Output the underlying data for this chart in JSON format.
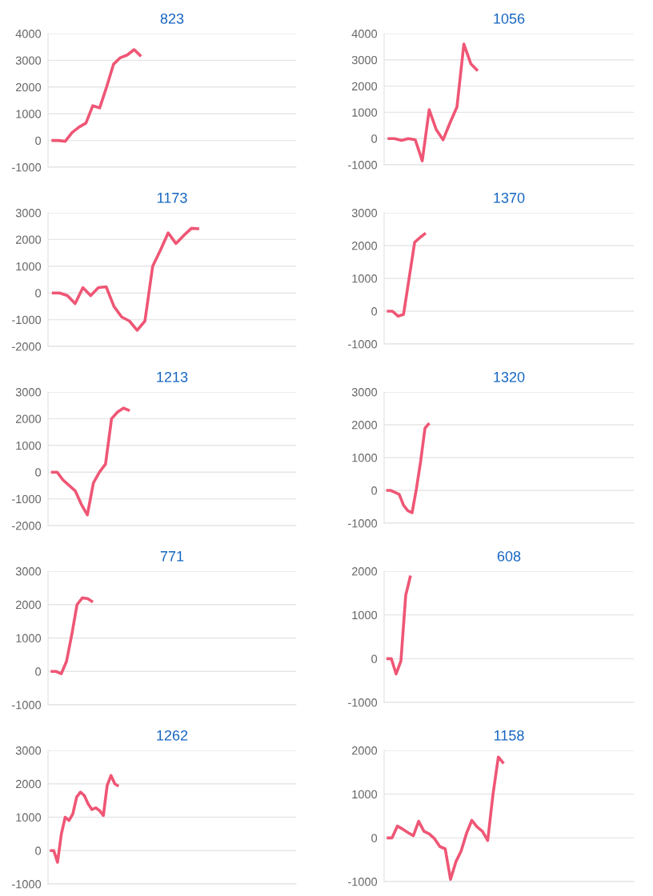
{
  "chart_data": [
    {
      "type": "line",
      "title": "823",
      "color": "#ef5675",
      "grid": "y",
      "ylim": [
        -1000,
        4000
      ],
      "yticks": [
        -1000,
        0,
        1000,
        2000,
        3000,
        4000
      ],
      "categories": [
        null,
        null,
        null,
        null,
        null,
        null,
        null,
        null,
        null,
        null,
        null,
        null,
        null,
        null,
        null,
        null,
        null,
        null,
        null,
        null,
        null,
        null,
        null,
        null,
        null,
        null,
        null,
        null,
        null,
        null,
        null,
        null,
        null,
        null,
        null,
        null
      ],
      "values": [
        0,
        0,
        -30,
        300,
        500,
        650,
        1300,
        1220,
        2000,
        2850,
        3100,
        3200,
        3400,
        3150,
        null,
        null,
        null,
        null,
        null,
        null,
        null,
        null,
        null,
        null,
        null,
        null,
        null,
        null,
        null,
        null,
        null,
        null,
        null,
        null,
        null,
        null
      ]
    },
    {
      "type": "line",
      "title": "1056",
      "color": "#ef5675",
      "grid": "y",
      "ylim": [
        -1000,
        4000
      ],
      "yticks": [
        -1000,
        0,
        1000,
        2000,
        3000,
        4000
      ],
      "categories": [
        null,
        null,
        null,
        null,
        null,
        null,
        null,
        null,
        null,
        null,
        null,
        null,
        null,
        null,
        null,
        null,
        null,
        null,
        null,
        null,
        null,
        null,
        null,
        null,
        null,
        null,
        null,
        null,
        null,
        null,
        null,
        null,
        null,
        null,
        null,
        null
      ],
      "values": [
        0,
        0,
        -70,
        0,
        -50,
        -850,
        1100,
        350,
        -50,
        600,
        1200,
        3600,
        2850,
        2580,
        null,
        null,
        null,
        null,
        null,
        null,
        null,
        null,
        null,
        null,
        null,
        null,
        null,
        null,
        null,
        null,
        null,
        null,
        null,
        null,
        null,
        null
      ]
    },
    {
      "type": "line",
      "title": "1173",
      "color": "#ef5675",
      "grid": "y",
      "ylim": [
        -2000,
        3000
      ],
      "yticks": [
        -2000,
        -1000,
        0,
        1000,
        2000,
        3000
      ],
      "categories": [
        null,
        null,
        null,
        null,
        null,
        null,
        null,
        null,
        null,
        null,
        null,
        null,
        null,
        null,
        null,
        null,
        null,
        null,
        null,
        null,
        null,
        null,
        null,
        null,
        null,
        null,
        null,
        null,
        null,
        null,
        null,
        null
      ],
      "values": [
        0,
        0,
        -100,
        -400,
        200,
        -100,
        200,
        230,
        -500,
        -900,
        -1050,
        -1400,
        -1050,
        1000,
        1600,
        2250,
        1850,
        2150,
        2420,
        2400,
        null,
        null,
        null,
        null,
        null,
        null,
        null,
        null,
        null,
        null,
        null,
        null
      ]
    },
    {
      "type": "line",
      "title": "1370",
      "color": "#ef5675",
      "grid": "y",
      "ylim": [
        -1000,
        3000
      ],
      "yticks": [
        -1000,
        0,
        1000,
        2000,
        3000
      ],
      "categories": [
        null,
        null,
        null,
        null,
        null,
        null,
        null,
        null,
        null,
        null,
        null,
        null,
        null,
        null,
        null,
        null,
        null,
        null,
        null,
        null,
        null,
        null,
        null,
        null,
        null,
        null,
        null,
        null,
        null,
        null,
        null,
        null,
        null,
        null,
        null,
        null,
        null,
        null,
        null,
        null,
        null,
        null,
        null,
        null,
        null
      ],
      "values": [
        0,
        0,
        -150,
        -100,
        1000,
        2100,
        2250,
        2380,
        null,
        null,
        null,
        null,
        null,
        null,
        null,
        null,
        null,
        null,
        null,
        null,
        null,
        null,
        null,
        null,
        null,
        null,
        null,
        null,
        null,
        null,
        null,
        null,
        null,
        null,
        null,
        null,
        null,
        null,
        null,
        null,
        null,
        null,
        null,
        null,
        null
      ]
    },
    {
      "type": "line",
      "title": "1213",
      "color": "#ef5675",
      "grid": "y",
      "ylim": [
        -2000,
        3000
      ],
      "yticks": [
        -2000,
        -1000,
        0,
        1000,
        2000,
        3000
      ],
      "categories": [
        null,
        null,
        null,
        null,
        null,
        null,
        null,
        null,
        null,
        null,
        null,
        null,
        null,
        null,
        null,
        null,
        null,
        null,
        null,
        null,
        null,
        null,
        null,
        null,
        null,
        null,
        null,
        null,
        null,
        null,
        null,
        null,
        null,
        null,
        null,
        null,
        null,
        null,
        null,
        null,
        null
      ],
      "values": [
        0,
        0,
        -300,
        -500,
        -700,
        -1200,
        -1600,
        -400,
        0,
        300,
        2000,
        2250,
        2400,
        2300,
        null,
        null,
        null,
        null,
        null,
        null,
        null,
        null,
        null,
        null,
        null,
        null,
        null,
        null,
        null,
        null,
        null,
        null,
        null,
        null,
        null,
        null,
        null,
        null,
        null,
        null,
        null
      ]
    },
    {
      "type": "line",
      "title": "1320",
      "color": "#ef5675",
      "grid": "y",
      "ylim": [
        -1000,
        3000
      ],
      "yticks": [
        -1000,
        0,
        1000,
        2000,
        3000
      ],
      "categories": [
        null,
        null,
        null,
        null,
        null,
        null,
        null,
        null,
        null,
        null,
        null,
        null,
        null,
        null,
        null,
        null,
        null,
        null,
        null,
        null,
        null,
        null,
        null,
        null,
        null,
        null,
        null,
        null,
        null,
        null,
        null,
        null,
        null,
        null,
        null,
        null,
        null,
        null,
        null,
        null,
        null,
        null,
        null,
        null,
        null,
        null,
        null,
        null,
        null,
        null,
        null,
        null,
        null,
        null,
        null,
        null,
        null,
        null
      ],
      "values": [
        0,
        0,
        -60,
        -120,
        -450,
        -620,
        -680,
        50,
        900,
        1900,
        2050,
        null,
        null,
        null,
        null,
        null,
        null,
        null,
        null,
        null,
        null,
        null,
        null,
        null,
        null,
        null,
        null,
        null,
        null,
        null,
        null,
        null,
        null,
        null,
        null,
        null,
        null,
        null,
        null,
        null,
        null,
        null,
        null,
        null,
        null,
        null,
        null,
        null,
        null,
        null,
        null,
        null,
        null,
        null,
        null,
        null,
        null,
        null
      ]
    },
    {
      "type": "line",
      "title": "771",
      "color": "#ef5675",
      "grid": "y",
      "ylim": [
        -1000,
        3000
      ],
      "yticks": [
        -1000,
        0,
        1000,
        2000,
        3000
      ],
      "categories": [
        null,
        null,
        null,
        null,
        null,
        null,
        null,
        null,
        null,
        null,
        null,
        null,
        null,
        null,
        null,
        null,
        null,
        null,
        null,
        null,
        null,
        null,
        null,
        null,
        null,
        null,
        null,
        null,
        null,
        null,
        null,
        null,
        null,
        null,
        null,
        null,
        null,
        null,
        null,
        null,
        null,
        null,
        null,
        null,
        null,
        null,
        null
      ],
      "values": [
        0,
        0,
        -70,
        300,
        1100,
        2000,
        2200,
        2180,
        2080,
        null,
        null,
        null,
        null,
        null,
        null,
        null,
        null,
        null,
        null,
        null,
        null,
        null,
        null,
        null,
        null,
        null,
        null,
        null,
        null,
        null,
        null,
        null,
        null,
        null,
        null,
        null,
        null,
        null,
        null,
        null,
        null,
        null,
        null,
        null,
        null,
        null,
        null
      ]
    },
    {
      "type": "line",
      "title": "608",
      "color": "#ef5675",
      "grid": "y",
      "ylim": [
        -1000,
        2000
      ],
      "yticks": [
        -1000,
        0,
        1000,
        2000
      ],
      "categories": [
        null,
        null,
        null,
        null,
        null,
        null,
        null,
        null,
        null,
        null,
        null,
        null,
        null,
        null,
        null,
        null,
        null,
        null,
        null,
        null,
        null,
        null,
        null,
        null,
        null,
        null,
        null,
        null,
        null,
        null,
        null,
        null,
        null,
        null,
        null,
        null,
        null,
        null,
        null,
        null,
        null,
        null,
        null,
        null,
        null,
        null,
        null,
        null,
        null,
        null,
        null,
        null
      ],
      "values": [
        0,
        0,
        -350,
        -50,
        1450,
        1900,
        null,
        null,
        null,
        null,
        null,
        null,
        null,
        null,
        null,
        null,
        null,
        null,
        null,
        null,
        null,
        null,
        null,
        null,
        null,
        null,
        null,
        null,
        null,
        null,
        null,
        null,
        null,
        null,
        null,
        null,
        null,
        null,
        null,
        null,
        null,
        null,
        null,
        null,
        null,
        null,
        null,
        null,
        null,
        null,
        null,
        null
      ]
    },
    {
      "type": "line",
      "title": "1262",
      "color": "#ef5675",
      "grid": "y",
      "ylim": [
        -1000,
        3000
      ],
      "yticks": [
        -1000,
        0,
        1000,
        2000,
        3000
      ],
      "categories": [
        null,
        null,
        null,
        null,
        null,
        null,
        null,
        null,
        null,
        null,
        null,
        null,
        null,
        null,
        null,
        null,
        null,
        null,
        null,
        null,
        null,
        null,
        null,
        null,
        null,
        null,
        null,
        null,
        null,
        null,
        null,
        null,
        null,
        null,
        null,
        null,
        null,
        null,
        null,
        null,
        null,
        null,
        null,
        null,
        null,
        null,
        null,
        null,
        null,
        null,
        null,
        null,
        null,
        null,
        null,
        null,
        null,
        null,
        null,
        null,
        null,
        null,
        null,
        null,
        null
      ],
      "values": [
        0,
        0,
        -350,
        500,
        1000,
        900,
        1100,
        1600,
        1750,
        1650,
        1400,
        1230,
        1280,
        1200,
        1050,
        1950,
        2250,
        2000,
        1930,
        null,
        null,
        null,
        null,
        null,
        null,
        null,
        null,
        null,
        null,
        null,
        null,
        null,
        null,
        null,
        null,
        null,
        null,
        null,
        null,
        null,
        null,
        null,
        null,
        null,
        null,
        null,
        null,
        null,
        null,
        null,
        null,
        null,
        null,
        null,
        null,
        null,
        null,
        null,
        null,
        null,
        null,
        null,
        null,
        null,
        null
      ]
    },
    {
      "type": "line",
      "title": "1158",
      "color": "#ef5675",
      "grid": "y",
      "ylim": [
        -1000,
        2000
      ],
      "yticks": [
        -1000,
        0,
        1000,
        2000
      ],
      "categories": [
        null,
        null,
        null,
        null,
        null,
        null,
        null,
        null,
        null,
        null,
        null,
        null,
        null,
        null,
        null,
        null,
        null,
        null,
        null,
        null,
        null,
        null,
        null,
        null,
        null,
        null,
        null,
        null,
        null,
        null,
        null,
        null,
        null,
        null,
        null,
        null,
        null,
        null,
        null,
        null,
        null,
        null,
        null,
        null,
        null,
        null,
        null
      ],
      "values": [
        0,
        0,
        270,
        200,
        120,
        50,
        380,
        150,
        90,
        -20,
        -200,
        -250,
        -950,
        -550,
        -300,
        100,
        400,
        250,
        150,
        -60,
        1000,
        1850,
        1700,
        null,
        null,
        null,
        null,
        null,
        null,
        null,
        null,
        null,
        null,
        null,
        null,
        null,
        null,
        null,
        null,
        null,
        null,
        null,
        null,
        null,
        null,
        null,
        null
      ]
    }
  ]
}
